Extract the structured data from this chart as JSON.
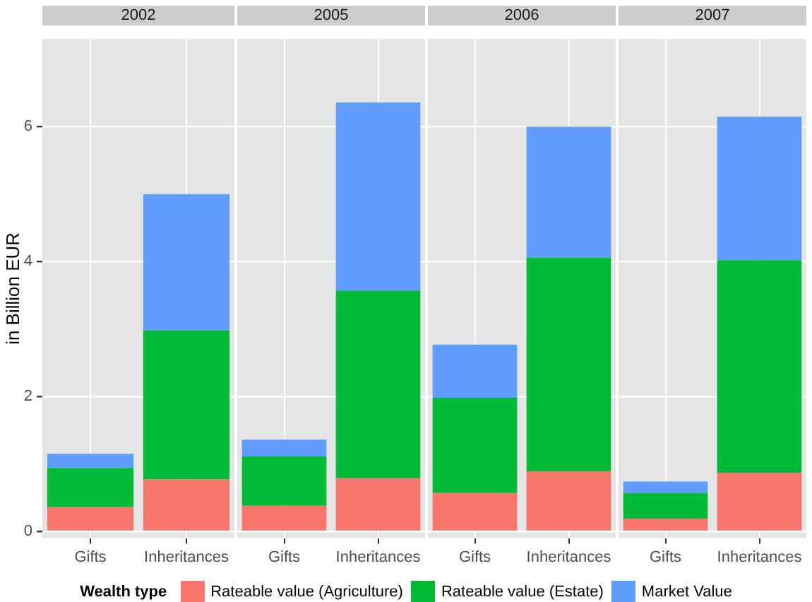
{
  "chart_data": [
    {
      "type": "bar",
      "title": "2002",
      "ylabel": "in Billion EUR",
      "categories": [
        "Gifts",
        "Inheritances"
      ],
      "stacked": true,
      "ylim": [
        -0.1,
        7.3
      ],
      "yticks": [
        0,
        2,
        4,
        6
      ],
      "grid": true,
      "legend": "bottom",
      "legend_title": "Wealth type",
      "series": [
        {
          "name": "Rateable value (Agriculture)",
          "color": "#f8766d",
          "values": [
            0.36,
            0.77
          ]
        },
        {
          "name": "Rateable value (Estate)",
          "color": "#00ba38",
          "values": [
            0.58,
            2.21
          ]
        },
        {
          "name": "Market Value",
          "color": "#619cff",
          "values": [
            0.21,
            2.02
          ]
        }
      ]
    },
    {
      "type": "bar",
      "title": "2005",
      "categories": [
        "Gifts",
        "Inheritances"
      ],
      "stacked": true,
      "ylim": [
        -0.1,
        7.3
      ],
      "yticks": [
        0,
        2,
        4,
        6
      ],
      "grid": true,
      "tick_labels": "x",
      "series": [
        {
          "color": "#f8766d",
          "values": [
            0.38,
            0.79
          ]
        },
        {
          "color": "#00ba38",
          "values": [
            0.73,
            2.78
          ]
        },
        {
          "color": "#619cff",
          "values": [
            0.25,
            2.79
          ]
        }
      ]
    },
    {
      "type": "bar",
      "title": "2006",
      "categories": [
        "Gifts",
        "Inheritances"
      ],
      "stacked": true,
      "ylim": [
        -0.1,
        7.3
      ],
      "yticks": [
        0,
        2,
        4,
        6
      ],
      "grid": true,
      "tick_labels": "x",
      "series": [
        {
          "color": "#f8766d",
          "values": [
            0.57,
            0.89
          ]
        },
        {
          "color": "#00ba38",
          "values": [
            1.41,
            3.17
          ]
        },
        {
          "color": "#619cff",
          "values": [
            0.79,
            1.94
          ]
        }
      ]
    },
    {
      "type": "bar",
      "title": "2007",
      "categories": [
        "Gifts",
        "Inheritances"
      ],
      "stacked": true,
      "ylim": [
        -0.1,
        7.3
      ],
      "yticks": [
        0,
        2,
        4,
        6
      ],
      "grid": true,
      "tick_labels": "x",
      "series": [
        {
          "color": "#f8766d",
          "values": [
            0.19,
            0.87
          ]
        },
        {
          "color": "#00ba38",
          "values": [
            0.38,
            3.15
          ]
        },
        {
          "color": "#619cff",
          "values": [
            0.17,
            2.13
          ]
        }
      ]
    }
  ]
}
